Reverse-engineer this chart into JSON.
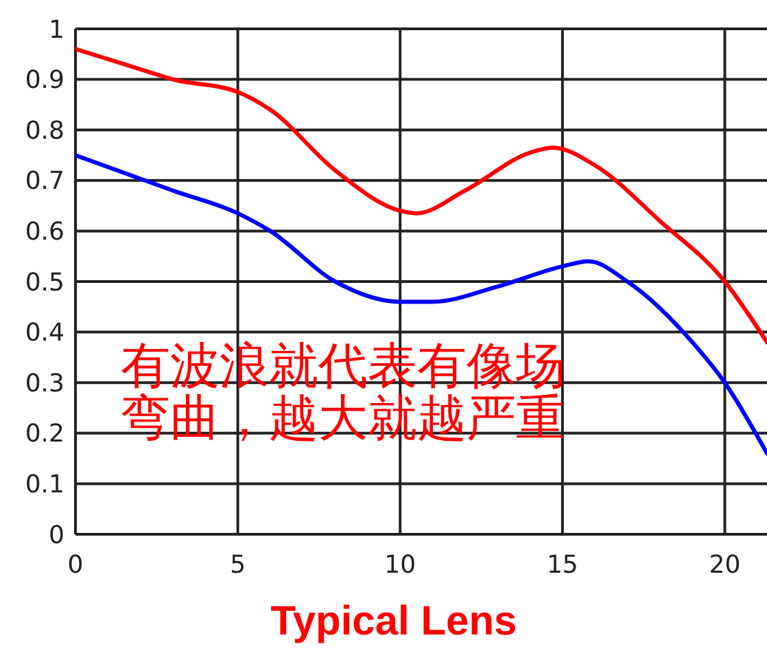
{
  "chart_data": {
    "type": "line",
    "xlabel": "Typical Lens",
    "xlim": [
      0,
      21.3
    ],
    "xticks": [
      0,
      5,
      10,
      15,
      20
    ],
    "ylim": [
      0,
      1
    ],
    "yticks": [
      0,
      0.1,
      0.2,
      0.3,
      0.4,
      0.5,
      0.6,
      0.7,
      0.8,
      0.9,
      1
    ],
    "grid": true,
    "marker": "none",
    "line_style": "solid",
    "annotations": [
      "有波浪就代表有像场弯曲，越大就越严重"
    ],
    "series": [
      {
        "color": "#ff0000",
        "x": [
          0,
          2,
          3,
          5,
          6,
          8,
          10,
          10.5,
          12,
          14,
          14.7,
          16,
          18,
          20,
          21.3
        ],
        "values": [
          0.96,
          0.92,
          0.9,
          0.875,
          0.84,
          0.72,
          0.64,
          0.635,
          0.68,
          0.755,
          0.765,
          0.73,
          0.62,
          0.5,
          0.38
        ]
      },
      {
        "color": "#0000ff",
        "x": [
          0,
          3,
          5,
          6,
          8,
          10,
          11,
          13,
          15,
          15.8,
          17,
          19,
          20,
          21.3
        ],
        "values": [
          0.75,
          0.68,
          0.635,
          0.6,
          0.5,
          0.46,
          0.46,
          0.49,
          0.53,
          0.54,
          0.5,
          0.38,
          0.3,
          0.16
        ]
      }
    ]
  }
}
